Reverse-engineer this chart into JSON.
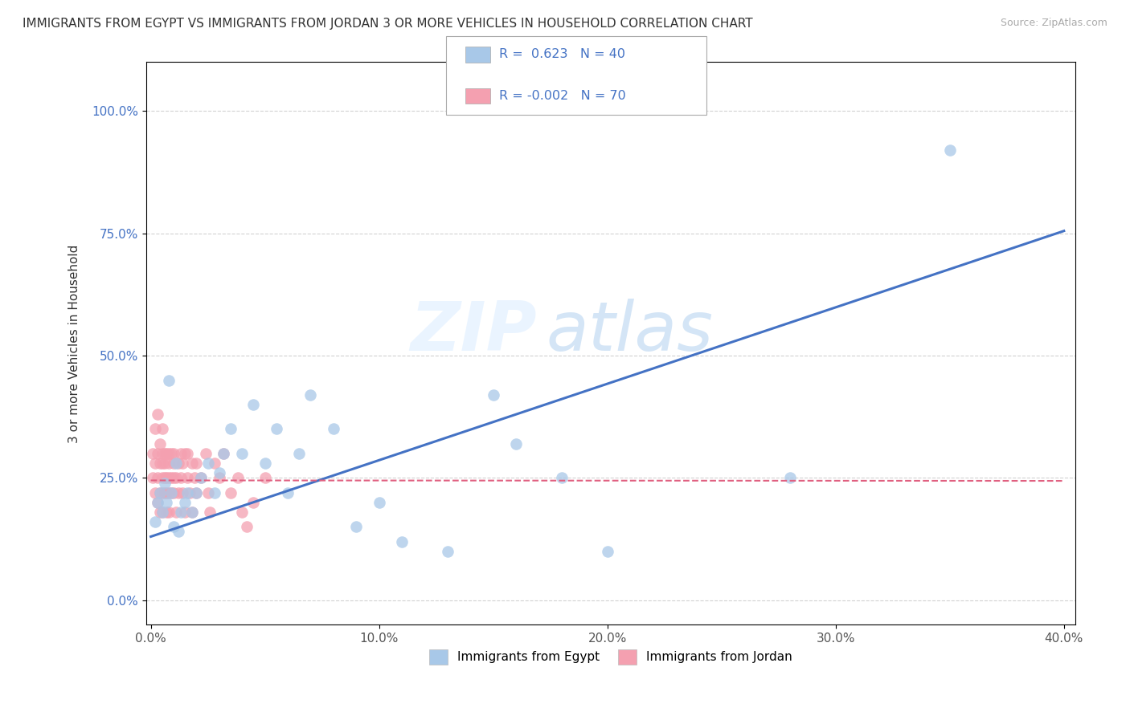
{
  "title": "IMMIGRANTS FROM EGYPT VS IMMIGRANTS FROM JORDAN 3 OR MORE VEHICLES IN HOUSEHOLD CORRELATION CHART",
  "source": "Source: ZipAtlas.com",
  "ylabel": "3 or more Vehicles in Household",
  "xlim": [
    0.0,
    0.4
  ],
  "ylim": [
    -0.05,
    1.1
  ],
  "yticks": [
    0.0,
    0.25,
    0.5,
    0.75,
    1.0
  ],
  "ytick_labels": [
    "0.0%",
    "25.0%",
    "50.0%",
    "75.0%",
    "100.0%"
  ],
  "xticks": [
    0.0,
    0.1,
    0.2,
    0.3,
    0.4
  ],
  "xtick_labels": [
    "0.0%",
    "10.0%",
    "20.0%",
    "30.0%",
    "40.0%"
  ],
  "egypt_R": 0.623,
  "egypt_N": 40,
  "jordan_R": -0.002,
  "jordan_N": 70,
  "egypt_color": "#a8c8e8",
  "jordan_color": "#f4a0b0",
  "egypt_line_color": "#4472c4",
  "jordan_line_color": "#e06080",
  "egypt_scatter_x": [
    0.002,
    0.003,
    0.004,
    0.005,
    0.006,
    0.007,
    0.008,
    0.009,
    0.01,
    0.011,
    0.012,
    0.013,
    0.015,
    0.016,
    0.018,
    0.02,
    0.022,
    0.025,
    0.028,
    0.03,
    0.032,
    0.035,
    0.04,
    0.045,
    0.05,
    0.055,
    0.06,
    0.065,
    0.07,
    0.08,
    0.09,
    0.1,
    0.11,
    0.13,
    0.15,
    0.16,
    0.18,
    0.2,
    0.28,
    0.35
  ],
  "egypt_scatter_y": [
    0.16,
    0.2,
    0.22,
    0.18,
    0.24,
    0.2,
    0.45,
    0.22,
    0.15,
    0.28,
    0.14,
    0.18,
    0.2,
    0.22,
    0.18,
    0.22,
    0.25,
    0.28,
    0.22,
    0.26,
    0.3,
    0.35,
    0.3,
    0.4,
    0.28,
    0.35,
    0.22,
    0.3,
    0.42,
    0.35,
    0.15,
    0.2,
    0.12,
    0.1,
    0.42,
    0.32,
    0.25,
    0.1,
    0.25,
    0.92
  ],
  "jordan_scatter_x": [
    0.001,
    0.001,
    0.002,
    0.002,
    0.002,
    0.003,
    0.003,
    0.003,
    0.003,
    0.004,
    0.004,
    0.004,
    0.004,
    0.005,
    0.005,
    0.005,
    0.005,
    0.005,
    0.005,
    0.006,
    0.006,
    0.006,
    0.006,
    0.007,
    0.007,
    0.007,
    0.007,
    0.008,
    0.008,
    0.008,
    0.008,
    0.008,
    0.009,
    0.009,
    0.009,
    0.01,
    0.01,
    0.01,
    0.01,
    0.011,
    0.011,
    0.012,
    0.012,
    0.013,
    0.013,
    0.014,
    0.014,
    0.015,
    0.015,
    0.016,
    0.016,
    0.017,
    0.018,
    0.018,
    0.019,
    0.02,
    0.02,
    0.022,
    0.024,
    0.025,
    0.026,
    0.028,
    0.03,
    0.032,
    0.035,
    0.038,
    0.04,
    0.042,
    0.045,
    0.05
  ],
  "jordan_scatter_y": [
    0.25,
    0.3,
    0.22,
    0.28,
    0.35,
    0.2,
    0.25,
    0.3,
    0.38,
    0.22,
    0.28,
    0.32,
    0.18,
    0.25,
    0.3,
    0.22,
    0.28,
    0.35,
    0.18,
    0.25,
    0.3,
    0.22,
    0.28,
    0.25,
    0.3,
    0.22,
    0.18,
    0.25,
    0.3,
    0.22,
    0.28,
    0.18,
    0.25,
    0.3,
    0.22,
    0.25,
    0.28,
    0.22,
    0.3,
    0.25,
    0.18,
    0.28,
    0.22,
    0.3,
    0.25,
    0.22,
    0.28,
    0.3,
    0.18,
    0.25,
    0.3,
    0.22,
    0.28,
    0.18,
    0.25,
    0.28,
    0.22,
    0.25,
    0.3,
    0.22,
    0.18,
    0.28,
    0.25,
    0.3,
    0.22,
    0.25,
    0.18,
    0.15,
    0.2,
    0.25
  ]
}
